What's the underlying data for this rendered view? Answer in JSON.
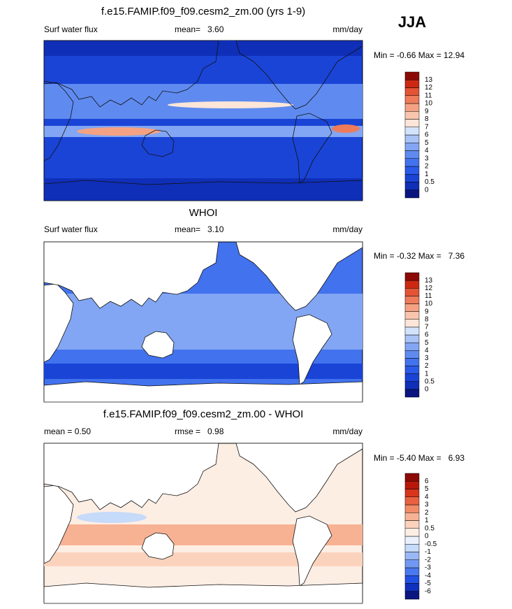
{
  "season": "JJA",
  "panels": [
    {
      "title": "f.e15.FAMIP.f09_f09.cesm2_zm.00 (yrs 1-9)",
      "left_label": "Surf water flux",
      "center_label": "mean=   3.60",
      "units": "mm/day",
      "minmax": "Min = -0.66 Max = 12.94",
      "colorbar": {
        "labels": [
          "0",
          "0.5",
          "1",
          "2",
          "3",
          "4",
          "5",
          "6",
          "7",
          "8",
          "9",
          "10",
          "11",
          "12",
          "13"
        ],
        "colors": [
          "#0a1580",
          "#0f2fb8",
          "#1a44d6",
          "#2a5ae8",
          "#4272ee",
          "#5f8bf0",
          "#82a6f3",
          "#a9c3f6",
          "#d3e3fb",
          "#fde6d8",
          "#f9c6ad",
          "#f4a283",
          "#ee7b5a",
          "#e45334",
          "#cc2812",
          "#8c0a05"
        ]
      }
    },
    {
      "title": "WHOI",
      "left_label": "Surf water flux",
      "center_label": "mean=   3.10",
      "units": "mm/day",
      "minmax": "Min = -0.32 Max =   7.36",
      "colorbar": {
        "labels": [
          "0",
          "0.5",
          "1",
          "2",
          "3",
          "4",
          "5",
          "6",
          "7",
          "8",
          "9",
          "10",
          "11",
          "12",
          "13"
        ],
        "colors": [
          "#0a1580",
          "#0f2fb8",
          "#1a44d6",
          "#2a5ae8",
          "#4272ee",
          "#5f8bf0",
          "#82a6f3",
          "#a9c3f6",
          "#d3e3fb",
          "#fde6d8",
          "#f9c6ad",
          "#f4a283",
          "#ee7b5a",
          "#e45334",
          "#cc2812",
          "#8c0a05"
        ]
      }
    },
    {
      "title": "f.e15.FAMIP.f09_f09.cesm2_zm.00 - WHOI",
      "left_label": "mean =   0.50",
      "center_label": "rmse =   0.98",
      "units": "mm/day",
      "minmax": "Min = -5.40 Max =   6.93",
      "colorbar": {
        "labels": [
          "-6",
          "-5",
          "-4",
          "-3",
          "-2",
          "-1",
          "-0.5",
          "0",
          "0.5",
          "1",
          "2",
          "3",
          "4",
          "5",
          "6"
        ],
        "colors": [
          "#0a1580",
          "#1030c0",
          "#2250e4",
          "#4a78ee",
          "#7098f2",
          "#9ab8f5",
          "#c6daf9",
          "#eaf1fd",
          "#fdeee4",
          "#fbd3bd",
          "#f7b294",
          "#f18b68",
          "#e96140",
          "#d8361c",
          "#b8180a",
          "#8c0a05"
        ]
      }
    }
  ]
}
